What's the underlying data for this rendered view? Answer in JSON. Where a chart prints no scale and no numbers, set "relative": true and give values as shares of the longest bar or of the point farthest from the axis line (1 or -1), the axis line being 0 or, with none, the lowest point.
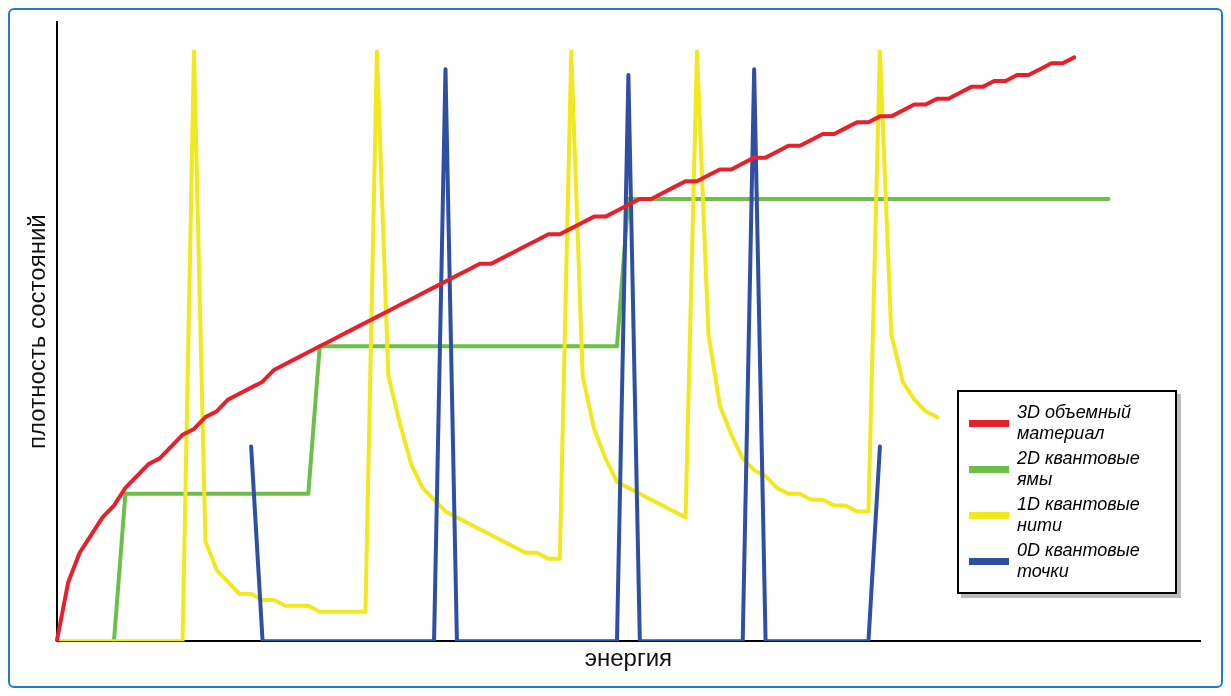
{
  "chart_data": {
    "type": "line",
    "relative": true,
    "xlabel": "энергия",
    "ylabel": "плотность состояний",
    "legend": "bottom right",
    "grid": false,
    "marker": "none",
    "line_style": "solid",
    "categories": [
      null,
      null,
      null,
      null,
      null,
      null,
      null,
      null,
      null,
      null,
      null,
      null,
      null,
      null,
      null,
      null,
      null,
      null,
      null,
      null,
      null,
      null,
      null,
      null,
      null,
      null,
      null,
      null,
      null,
      null,
      null,
      null,
      null,
      null,
      null,
      null,
      null,
      null,
      null,
      null,
      null,
      null,
      null,
      null,
      null,
      null,
      null,
      null,
      null,
      null,
      null,
      null,
      null,
      null,
      null,
      null,
      null,
      null,
      null,
      null,
      null,
      null,
      null,
      null,
      null,
      null,
      null,
      null,
      null,
      null,
      null,
      null,
      null,
      null,
      null,
      null,
      null,
      null,
      null,
      null,
      null,
      null,
      null,
      null,
      null,
      null,
      null,
      null,
      null,
      null,
      null,
      null,
      null,
      null,
      null,
      null,
      null,
      null,
      null,
      null,
      null
    ],
    "series": [
      {
        "name": "3D объемный материал",
        "color": "#e8202a",
        "values": [
          0,
          0.1,
          0.15,
          0.18,
          0.21,
          0.23,
          0.26,
          0.28,
          0.3,
          0.31,
          0.33,
          0.35,
          0.36,
          0.38,
          0.39,
          0.41,
          0.42,
          0.43,
          0.44,
          0.46,
          0.47,
          0.48,
          0.49,
          0.5,
          0.51,
          0.52,
          0.53,
          0.54,
          0.55,
          0.56,
          0.57,
          0.58,
          0.59,
          0.6,
          0.61,
          0.62,
          0.63,
          0.64,
          0.64,
          0.65,
          0.66,
          0.67,
          0.68,
          0.69,
          0.69,
          0.7,
          0.71,
          0.72,
          0.72,
          0.73,
          0.74,
          0.75,
          0.75,
          0.76,
          0.77,
          0.78,
          0.78,
          0.79,
          0.8,
          0.8,
          0.81,
          0.82,
          0.82,
          0.83,
          0.84,
          0.84,
          0.85,
          0.86,
          0.86,
          0.87,
          0.88,
          0.88,
          0.89,
          0.89,
          0.9,
          0.91,
          0.91,
          0.92,
          0.92,
          0.93,
          0.94,
          0.94,
          0.95,
          0.95,
          0.96,
          0.96,
          0.97,
          0.98,
          0.98,
          0.99,
          null,
          null,
          null,
          null,
          null,
          null,
          null,
          null,
          null,
          null,
          null
        ]
      },
      {
        "name": "2D квантовые ямы",
        "color": "#6cc04a",
        "values": [
          null,
          null,
          null,
          null,
          null,
          0,
          0.25,
          0.25,
          0.25,
          0.25,
          0.25,
          0.25,
          0.25,
          0.25,
          0.25,
          0.25,
          0.25,
          0.25,
          0.25,
          0.25,
          0.25,
          0.25,
          0.25,
          0.5,
          0.5,
          0.5,
          0.5,
          0.5,
          0.5,
          0.5,
          0.5,
          0.5,
          0.5,
          0.5,
          0.5,
          0.5,
          0.5,
          0.5,
          0.5,
          0.5,
          0.5,
          0.5,
          0.5,
          0.5,
          0.5,
          0.5,
          0.5,
          0.5,
          0.5,
          0.5,
          0.75,
          0.75,
          0.75,
          0.75,
          0.75,
          0.75,
          0.75,
          0.75,
          0.75,
          0.75,
          0.75,
          0.75,
          0.75,
          0.75,
          0.75,
          0.75,
          0.75,
          0.75,
          0.75,
          0.75,
          0.75,
          0.75,
          0.75,
          0.75,
          0.75,
          0.75,
          0.75,
          0.75,
          0.75,
          0.75,
          0.75,
          0.75,
          0.75,
          0.75,
          0.75,
          0.75,
          0.75,
          0.75,
          0.75,
          0.75,
          0.75,
          0.75,
          0.75,
          null,
          null,
          null,
          null,
          null,
          null,
          null,
          null
        ]
      },
      {
        "name": "1D квантовые нити",
        "color": "#f2e81e",
        "values": [
          0,
          0,
          0,
          0,
          0,
          0,
          0,
          0,
          0,
          0,
          0,
          0,
          1,
          0.17,
          0.12,
          0.1,
          0.08,
          0.08,
          0.07,
          0.07,
          0.06,
          0.06,
          0.06,
          0.05,
          0.05,
          0.05,
          0.05,
          0.05,
          1,
          0.45,
          0.37,
          0.3,
          0.26,
          0.24,
          0.22,
          0.21,
          0.2,
          0.19,
          0.18,
          0.17,
          0.16,
          0.15,
          0.15,
          0.14,
          0.14,
          1,
          0.45,
          0.36,
          0.31,
          0.27,
          0.26,
          0.25,
          0.24,
          0.23,
          0.22,
          0.21,
          1,
          0.52,
          0.4,
          0.35,
          0.31,
          0.29,
          0.28,
          0.26,
          0.25,
          0.25,
          0.24,
          0.24,
          0.23,
          0.23,
          0.22,
          0.22,
          1,
          0.52,
          0.44,
          0.41,
          0.39,
          0.38,
          null,
          null,
          null,
          null,
          null,
          null,
          null,
          null,
          null,
          null,
          null,
          null,
          null,
          null,
          null,
          null,
          null,
          null,
          null,
          null,
          null,
          null,
          null
        ]
      },
      {
        "name": "0D квантовые точки",
        "color": "#2e4fa3",
        "values": [
          null,
          null,
          null,
          null,
          null,
          null,
          null,
          null,
          null,
          null,
          null,
          null,
          null,
          null,
          null,
          null,
          null,
          0.33,
          0,
          0,
          0,
          0,
          0,
          0,
          0,
          0,
          0,
          0,
          0,
          0,
          0,
          0,
          0,
          0,
          0.97,
          0,
          0,
          0,
          0,
          0,
          0,
          0,
          0,
          0,
          0,
          0,
          0,
          0,
          0,
          0,
          0.96,
          0,
          0,
          0,
          0,
          0,
          0,
          0,
          0,
          0,
          0,
          0.97,
          0,
          0,
          0,
          0,
          0,
          0,
          0,
          0,
          0,
          0,
          0.33,
          null,
          null,
          null,
          null,
          null,
          null,
          null,
          null,
          null,
          null,
          null,
          null,
          null,
          null,
          null,
          null,
          null,
          null,
          null,
          null,
          null,
          null,
          null,
          null,
          null,
          null,
          null,
          null
        ]
      }
    ]
  }
}
